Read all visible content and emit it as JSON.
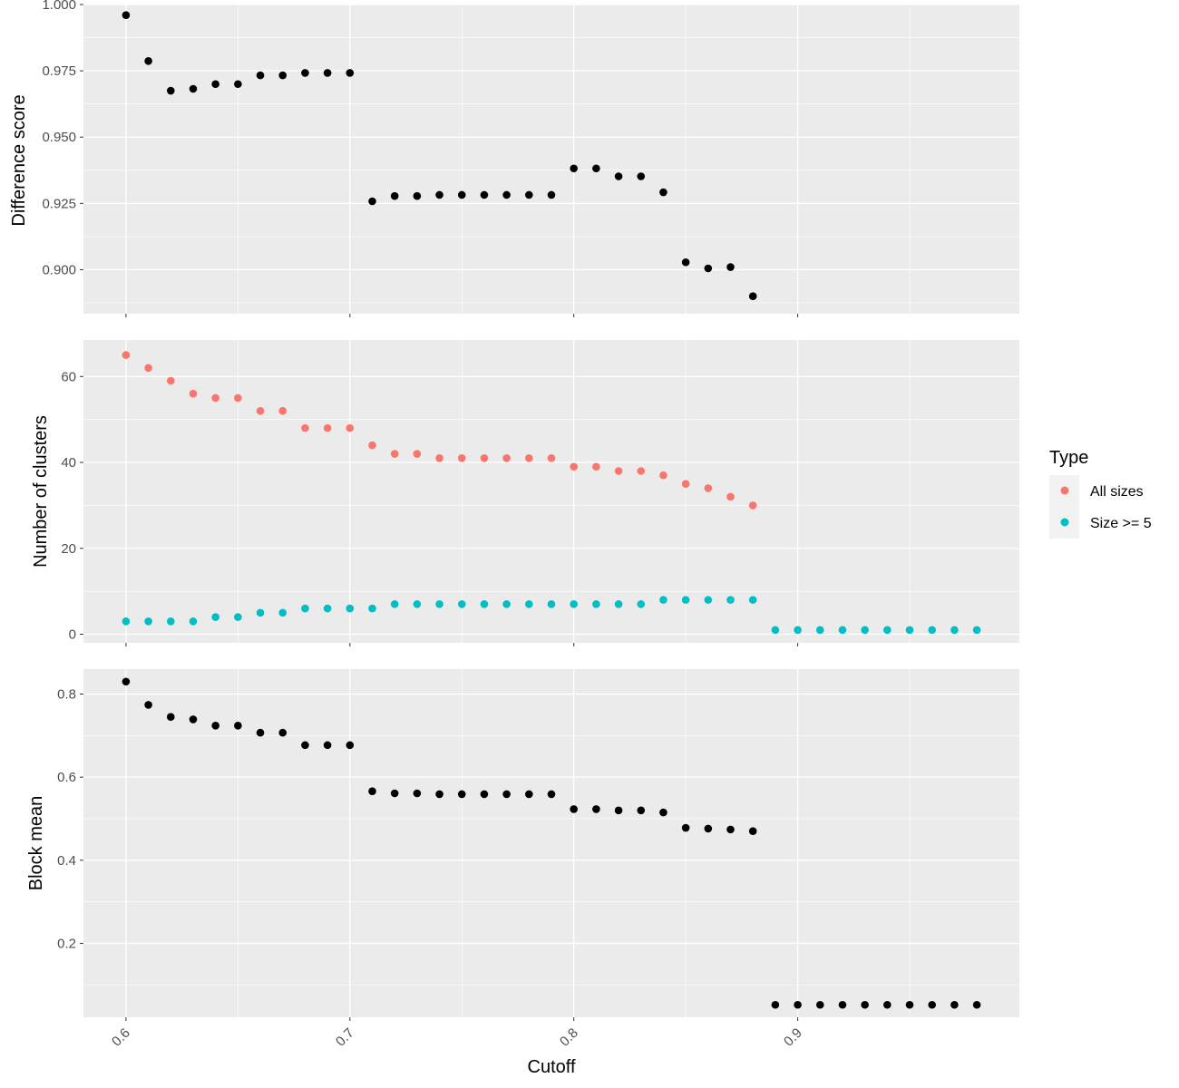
{
  "chart_data": {
    "type": "scatter",
    "x_label": "Cutoff",
    "x_ticks": [
      0.6,
      0.7,
      0.8,
      0.9
    ],
    "x_range": [
      0.581,
      0.999
    ],
    "x_tick_rotation_deg": -45,
    "background": "#ebebeb",
    "grid": true,
    "grid_color": "#ffffff",
    "legend": {
      "title": "Type",
      "placement": "right",
      "entries": [
        {
          "label": "All sizes",
          "color": "#F8766D"
        },
        {
          "label": "Size >= 5",
          "color": "#00BFC4"
        }
      ]
    },
    "panels": [
      {
        "ylabel": "Difference score",
        "y_range": [
          0.8834,
          1.0
        ]
      },
      {
        "ylabel": "Number of clusters",
        "y_range": [
          -2.0,
          68.5
        ]
      },
      {
        "ylabel": "Block mean",
        "y_range": [
          0.022,
          0.86
        ]
      }
    ]
  },
  "panel_ticks": [
    [
      "0.900",
      "0.925",
      "0.950",
      "0.975",
      "1.000"
    ],
    [
      "0",
      "20",
      "40",
      "60"
    ],
    [
      "0.2",
      "0.4",
      "0.6",
      "0.8"
    ]
  ],
  "x_tick_labels": [
    "0.6",
    "0.7",
    "0.8",
    "0.9"
  ],
  "series": [
    {
      "panel": 0,
      "color": "#000000",
      "x": [
        0.6,
        0.61,
        0.62,
        0.63,
        0.64,
        0.65,
        0.66,
        0.67,
        0.68,
        0.69,
        0.7,
        0.71,
        0.72,
        0.73,
        0.74,
        0.75,
        0.76,
        0.77,
        0.78,
        0.79,
        0.8,
        0.81,
        0.82,
        0.83,
        0.84,
        0.85,
        0.86,
        0.87,
        0.88
      ],
      "y": [
        0.996,
        0.9787,
        0.9675,
        0.9682,
        0.97,
        0.97,
        0.9733,
        0.9733,
        0.9742,
        0.9742,
        0.9742,
        0.9258,
        0.9278,
        0.9278,
        0.9282,
        0.9282,
        0.9282,
        0.9282,
        0.9282,
        0.9282,
        0.9382,
        0.9382,
        0.9352,
        0.9352,
        0.9292,
        0.9028,
        0.9005,
        0.901,
        0.89
      ]
    },
    {
      "panel": 1,
      "name": "All sizes",
      "color": "#F8766D",
      "x": [
        0.6,
        0.61,
        0.62,
        0.63,
        0.64,
        0.65,
        0.66,
        0.67,
        0.68,
        0.69,
        0.7,
        0.71,
        0.72,
        0.73,
        0.74,
        0.75,
        0.76,
        0.77,
        0.78,
        0.79,
        0.8,
        0.81,
        0.82,
        0.83,
        0.84,
        0.85,
        0.86,
        0.87,
        0.88
      ],
      "y": [
        65,
        62,
        59,
        56,
        55,
        55,
        52,
        52,
        48,
        48,
        48,
        44,
        42,
        42,
        41,
        41,
        41,
        41,
        41,
        41,
        39,
        39,
        38,
        38,
        37,
        35,
        34,
        32,
        30
      ]
    },
    {
      "panel": 1,
      "name": "Size >= 5",
      "color": "#00BFC4",
      "x": [
        0.6,
        0.61,
        0.62,
        0.63,
        0.64,
        0.65,
        0.66,
        0.67,
        0.68,
        0.69,
        0.7,
        0.71,
        0.72,
        0.73,
        0.74,
        0.75,
        0.76,
        0.77,
        0.78,
        0.79,
        0.8,
        0.81,
        0.82,
        0.83,
        0.84,
        0.85,
        0.86,
        0.87,
        0.88,
        0.89,
        0.9,
        0.91,
        0.92,
        0.93,
        0.94,
        0.95,
        0.96,
        0.97,
        0.98
      ],
      "y": [
        3,
        3,
        3,
        3,
        4,
        4,
        5,
        5,
        6,
        6,
        6,
        6,
        7,
        7,
        7,
        7,
        7,
        7,
        7,
        7,
        7,
        7,
        7,
        7,
        8,
        8,
        8,
        8,
        8,
        1,
        1,
        1,
        1,
        1,
        1,
        1,
        1,
        1,
        1
      ]
    },
    {
      "panel": 2,
      "color": "#000000",
      "x": [
        0.6,
        0.61,
        0.62,
        0.63,
        0.64,
        0.65,
        0.66,
        0.67,
        0.68,
        0.69,
        0.7,
        0.71,
        0.72,
        0.73,
        0.74,
        0.75,
        0.76,
        0.77,
        0.78,
        0.79,
        0.8,
        0.81,
        0.82,
        0.83,
        0.84,
        0.85,
        0.86,
        0.87,
        0.88,
        0.89,
        0.9,
        0.91,
        0.92,
        0.93,
        0.94,
        0.95,
        0.96,
        0.97,
        0.98
      ],
      "y": [
        0.83,
        0.774,
        0.745,
        0.739,
        0.724,
        0.724,
        0.707,
        0.707,
        0.677,
        0.677,
        0.677,
        0.566,
        0.561,
        0.561,
        0.559,
        0.559,
        0.559,
        0.559,
        0.559,
        0.559,
        0.523,
        0.523,
        0.52,
        0.52,
        0.515,
        0.478,
        0.476,
        0.474,
        0.47,
        0.052,
        0.052,
        0.052,
        0.052,
        0.052,
        0.052,
        0.052,
        0.052,
        0.052,
        0.052
      ]
    }
  ]
}
